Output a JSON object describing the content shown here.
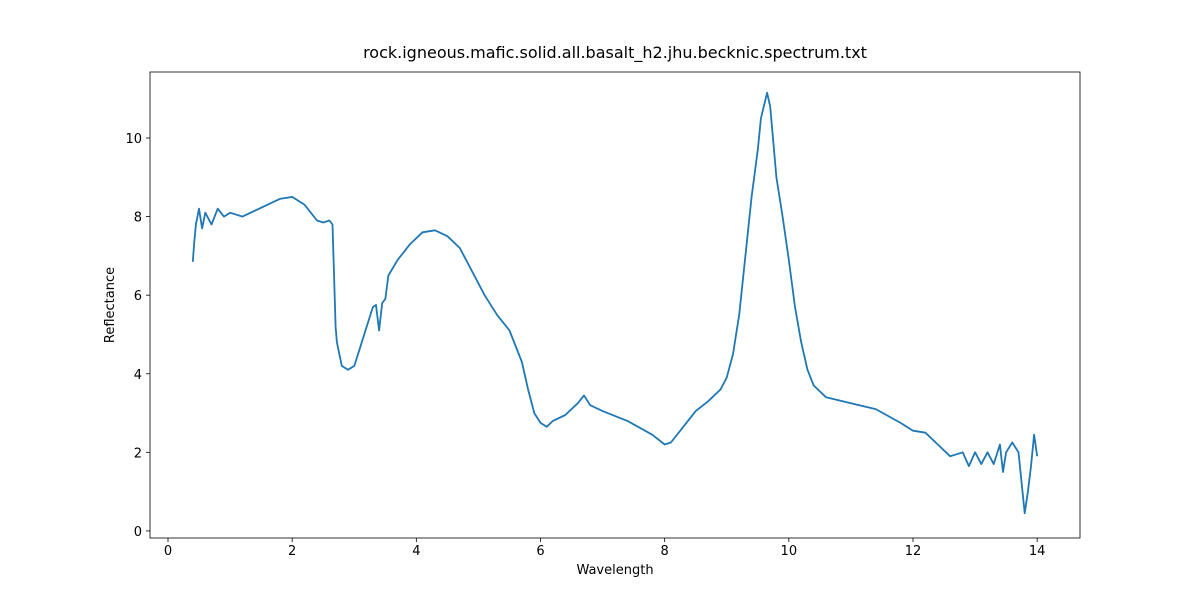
{
  "chart_data": {
    "type": "line",
    "title": "rock.igneous.mafic.solid.all.basalt_h2.jhu.becknic.spectrum.txt",
    "xlabel": "Wavelength",
    "ylabel": "Reflectance",
    "xlim": [
      -0.29,
      14.69
    ],
    "ylim": [
      -0.18,
      11.68
    ],
    "xticks": [
      0,
      2,
      4,
      6,
      8,
      10,
      12,
      14
    ],
    "yticks": [
      0,
      2,
      4,
      6,
      8,
      10
    ],
    "grid": false,
    "series": [
      {
        "color": "#1f77b4",
        "x": [
          0.4,
          0.42,
          0.45,
          0.5,
          0.55,
          0.6,
          0.7,
          0.8,
          0.9,
          1.0,
          1.2,
          1.4,
          1.6,
          1.8,
          2.0,
          2.2,
          2.4,
          2.5,
          2.6,
          2.65,
          2.7,
          2.72,
          2.8,
          2.9,
          3.0,
          3.1,
          3.2,
          3.3,
          3.35,
          3.4,
          3.45,
          3.5,
          3.55,
          3.7,
          3.9,
          4.1,
          4.3,
          4.5,
          4.7,
          4.9,
          5.1,
          5.3,
          5.5,
          5.7,
          5.8,
          5.9,
          6.0,
          6.1,
          6.2,
          6.4,
          6.6,
          6.7,
          6.8,
          7.0,
          7.4,
          7.8,
          8.0,
          8.1,
          8.3,
          8.5,
          8.7,
          8.9,
          9.0,
          9.1,
          9.2,
          9.3,
          9.4,
          9.5,
          9.55,
          9.65,
          9.7,
          9.8,
          9.9,
          10.0,
          10.1,
          10.2,
          10.3,
          10.4,
          10.6,
          11.0,
          11.4,
          11.8,
          12.0,
          12.2,
          12.4,
          12.6,
          12.8,
          12.9,
          13.0,
          13.1,
          13.2,
          13.3,
          13.4,
          13.45,
          13.5,
          13.6,
          13.7,
          13.8,
          13.85,
          13.9,
          13.95,
          14.0
        ],
        "values": [
          6.85,
          7.3,
          7.8,
          8.2,
          7.7,
          8.1,
          7.8,
          8.2,
          8.0,
          8.1,
          8.0,
          8.15,
          8.3,
          8.45,
          8.5,
          8.3,
          7.9,
          7.85,
          7.9,
          7.8,
          5.2,
          4.8,
          4.2,
          4.1,
          4.2,
          4.7,
          5.2,
          5.7,
          5.75,
          5.1,
          5.8,
          5.9,
          6.5,
          6.9,
          7.3,
          7.6,
          7.65,
          7.5,
          7.2,
          6.6,
          6.0,
          5.5,
          5.1,
          4.3,
          3.6,
          3.0,
          2.75,
          2.65,
          2.8,
          2.95,
          3.25,
          3.45,
          3.2,
          3.05,
          2.8,
          2.45,
          2.2,
          2.25,
          2.65,
          3.05,
          3.3,
          3.6,
          3.9,
          4.5,
          5.5,
          7.0,
          8.5,
          9.7,
          10.5,
          11.15,
          10.8,
          9.0,
          8.0,
          6.9,
          5.7,
          4.8,
          4.1,
          3.7,
          3.4,
          3.25,
          3.1,
          2.75,
          2.55,
          2.5,
          2.2,
          1.9,
          2.0,
          1.65,
          2.0,
          1.7,
          2.0,
          1.7,
          2.2,
          1.5,
          2.0,
          2.25,
          2.0,
          0.45,
          1.0,
          1.65,
          2.45,
          1.9
        ]
      }
    ]
  }
}
